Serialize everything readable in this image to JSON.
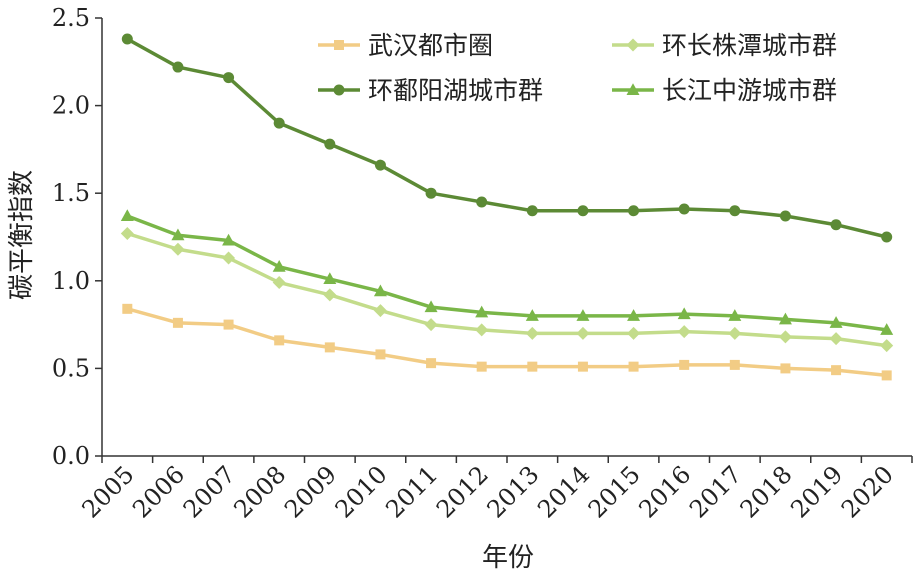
{
  "chart_data": {
    "type": "line",
    "xlabel": "年份",
    "ylabel": "碳平衡指数",
    "ylim": [
      0,
      2.5
    ],
    "yticks": [
      "0.0",
      "0.5",
      "1.0",
      "1.5",
      "2.0",
      "2.5"
    ],
    "categories": [
      "2005",
      "2006",
      "2007",
      "2008",
      "2009",
      "2010",
      "2011",
      "2012",
      "2013",
      "2014",
      "2015",
      "2016",
      "2017",
      "2018",
      "2019",
      "2020"
    ],
    "grid": false,
    "legend_position": "top",
    "series": [
      {
        "name": "武汉都市圈",
        "color": "#f2cc85",
        "marker": "square",
        "values": [
          0.84,
          0.76,
          0.75,
          0.66,
          0.62,
          0.58,
          0.53,
          0.51,
          0.51,
          0.51,
          0.51,
          0.52,
          0.52,
          0.5,
          0.49,
          0.46
        ]
      },
      {
        "name": "环长株潭城市群",
        "color": "#c3dc8b",
        "marker": "diamond",
        "values": [
          1.27,
          1.18,
          1.13,
          0.99,
          0.92,
          0.83,
          0.75,
          0.72,
          0.7,
          0.7,
          0.7,
          0.71,
          0.7,
          0.68,
          0.67,
          0.63
        ]
      },
      {
        "name": "环鄱阳湖城市群",
        "color": "#5c8a35",
        "marker": "circle",
        "values": [
          2.38,
          2.22,
          2.16,
          1.9,
          1.78,
          1.66,
          1.5,
          1.45,
          1.4,
          1.4,
          1.4,
          1.41,
          1.4,
          1.37,
          1.32,
          1.25
        ]
      },
      {
        "name": "长江中游城市群",
        "color": "#7ab648",
        "marker": "triangle",
        "values": [
          1.37,
          1.26,
          1.23,
          1.08,
          1.01,
          0.94,
          0.85,
          0.82,
          0.8,
          0.8,
          0.8,
          0.81,
          0.8,
          0.78,
          0.76,
          0.72
        ]
      }
    ]
  }
}
